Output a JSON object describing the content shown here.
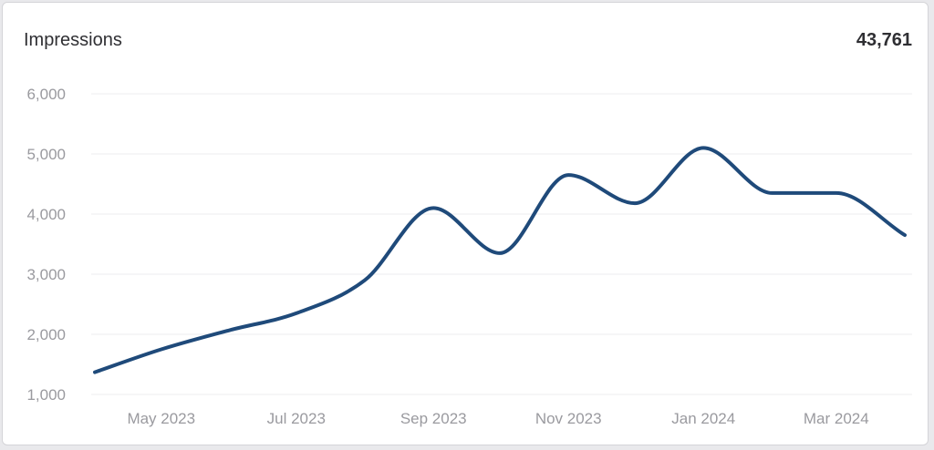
{
  "header": {
    "title": "Impressions",
    "total": "43,761"
  },
  "colors": {
    "line": "#1f4a7a",
    "grid": "#ececef",
    "tick": "#9a9a9f"
  },
  "chart_data": {
    "type": "line",
    "title": "Impressions",
    "xlabel": "",
    "ylabel": "",
    "x": [
      "2023-04-01",
      "2023-05-01",
      "2023-06-01",
      "2023-07-01",
      "2023-08-01",
      "2023-09-01",
      "2023-10-01",
      "2023-11-01",
      "2023-12-01",
      "2024-01-01",
      "2024-02-01",
      "2024-03-01",
      "2024-04-01"
    ],
    "series": [
      {
        "values": [
          1370,
          1750,
          2070,
          2350,
          2900,
          4100,
          3350,
          4650,
          4180,
          5100,
          4350,
          4350,
          3650
        ]
      }
    ],
    "ylim": [
      1000,
      6000
    ],
    "yticks": [
      1000,
      2000,
      3000,
      4000,
      5000,
      6000
    ],
    "ytick_labels": [
      "1,000",
      "2,000",
      "3,000",
      "4,000",
      "5,000",
      "6,000"
    ],
    "xticks": [
      "2023-05-01",
      "2023-07-01",
      "2023-09-01",
      "2023-11-01",
      "2024-01-01",
      "2024-03-01"
    ],
    "xtick_labels": [
      "May 2023",
      "Jul 2023",
      "Sep 2023",
      "Nov 2023",
      "Jan 2024",
      "Mar 2024"
    ],
    "grid": true,
    "legend": false
  }
}
